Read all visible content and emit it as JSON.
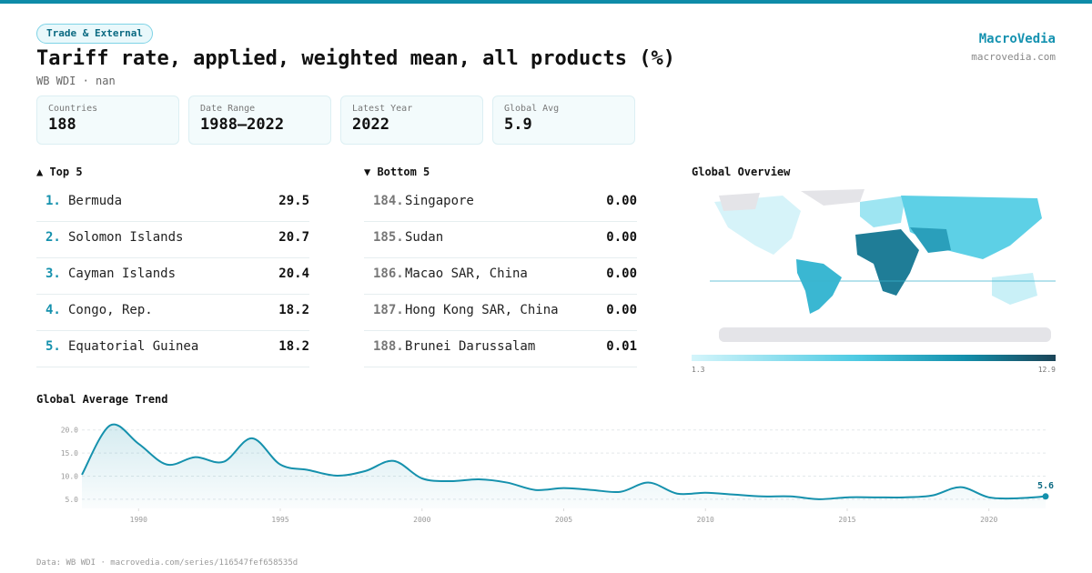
{
  "header": {
    "badge": "Trade & External",
    "title": "Tariff rate, applied, weighted mean, all products (%)",
    "subtitle": "WB WDI · nan",
    "brand": "MacroVedia",
    "site": "macrovedia.com"
  },
  "stats": [
    {
      "label": "Countries",
      "value": "188"
    },
    {
      "label": "Date Range",
      "value": "1988–2022"
    },
    {
      "label": "Latest Year",
      "value": "2022"
    },
    {
      "label": "Global Avg",
      "value": "5.9"
    }
  ],
  "top": {
    "heading": "▲ Top 5",
    "rows": [
      {
        "rank": "1.",
        "name": "Bermuda",
        "value": "29.5"
      },
      {
        "rank": "2.",
        "name": "Solomon Islands",
        "value": "20.7"
      },
      {
        "rank": "3.",
        "name": "Cayman Islands",
        "value": "20.4"
      },
      {
        "rank": "4.",
        "name": "Congo, Rep.",
        "value": "18.2"
      },
      {
        "rank": "5.",
        "name": "Equatorial Guinea",
        "value": "18.2"
      }
    ]
  },
  "bottom": {
    "heading": "▼ Bottom 5",
    "rows": [
      {
        "rank": "184.",
        "name": "Singapore",
        "value": "0.00"
      },
      {
        "rank": "185.",
        "name": "Sudan",
        "value": "0.00"
      },
      {
        "rank": "186.",
        "name": "Macao SAR, China",
        "value": "0.00"
      },
      {
        "rank": "187.",
        "name": "Hong Kong SAR, China",
        "value": "0.00"
      },
      {
        "rank": "188.",
        "name": "Brunei Darussalam",
        "value": "0.01"
      }
    ]
  },
  "map": {
    "heading": "Global Overview",
    "legend_min": 1.3,
    "legend_max": 12.9
  },
  "chart_data": {
    "type": "line",
    "title": "Global Average Trend",
    "color": "#1591ad",
    "x": [
      1988,
      1989,
      1990,
      1991,
      1992,
      1993,
      1994,
      1995,
      1996,
      1997,
      1998,
      1999,
      2000,
      2001,
      2002,
      2003,
      2004,
      2005,
      2006,
      2007,
      2008,
      2009,
      2010,
      2011,
      2012,
      2013,
      2014,
      2015,
      2016,
      2017,
      2018,
      2019,
      2020,
      2021,
      2022
    ],
    "values": [
      10.3,
      21.0,
      17.0,
      12.5,
      14.1,
      13.1,
      18.2,
      12.5,
      11.3,
      10.1,
      11.1,
      13.3,
      9.5,
      8.9,
      9.3,
      8.6,
      7.0,
      7.4,
      7.0,
      6.6,
      8.6,
      6.2,
      6.4,
      6.0,
      5.6,
      5.6,
      5.0,
      5.4,
      5.4,
      5.4,
      5.8,
      7.6,
      5.4,
      5.2,
      5.6
    ],
    "xlim": [
      1988,
      2022
    ],
    "xticks": [
      1990,
      1995,
      2000,
      2005,
      2010,
      2015,
      2020
    ],
    "ylim": [
      3,
      22.5
    ],
    "yticks": [
      {
        "value": 5,
        "label": "5.0"
      },
      {
        "value": 10,
        "label": "10.0"
      },
      {
        "value": 15,
        "label": "15.0"
      },
      {
        "value": 20,
        "label": "20.0"
      }
    ],
    "grid": true
  },
  "footer": "Data: WB WDI · macrovedia.com/series/116547fef658535d"
}
